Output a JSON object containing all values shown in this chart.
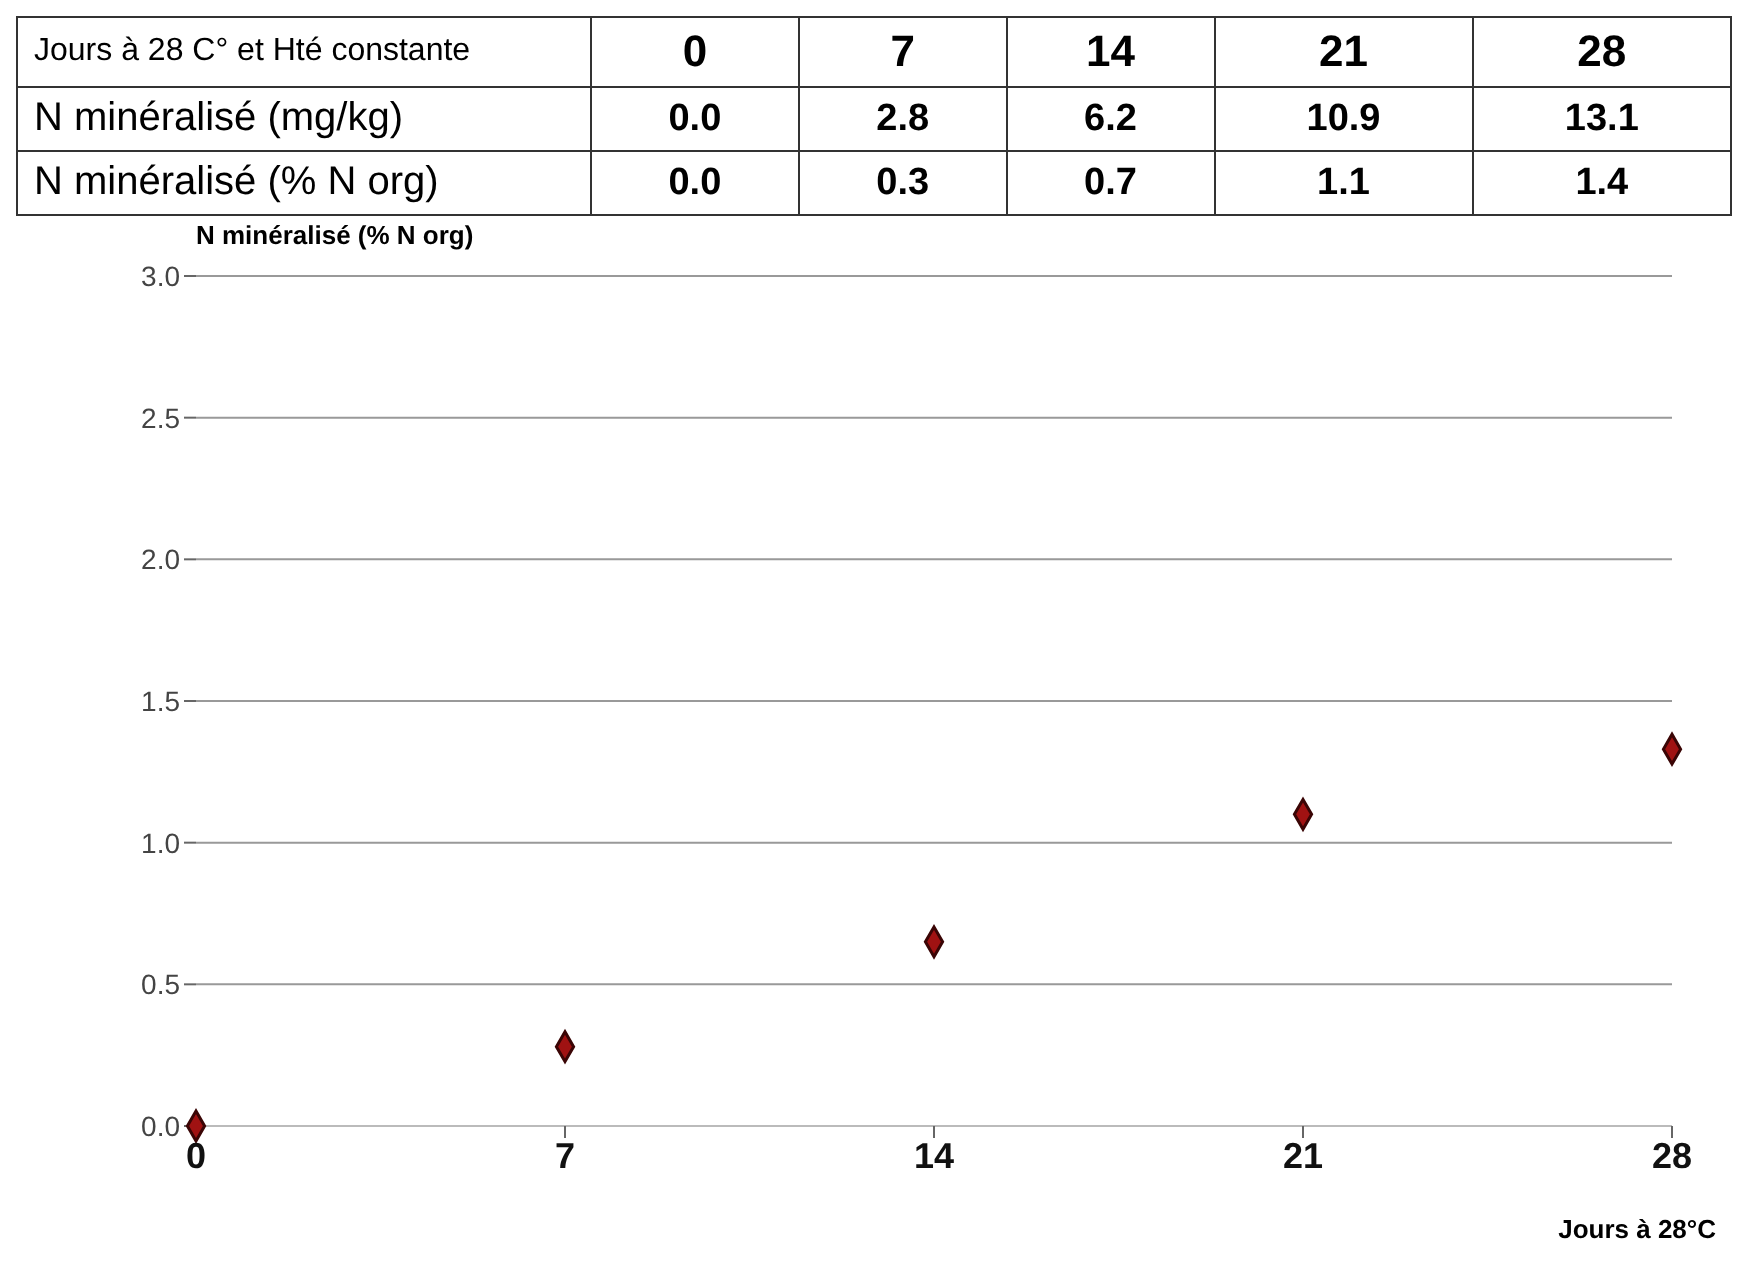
{
  "chart_data": [
    {
      "type": "other",
      "title": "Jours à 28 C° et Hté constante",
      "categories": [
        "0",
        "7",
        "14",
        "21",
        "28"
      ],
      "series": [
        {
          "name": "N minéralisé (mg/kg)",
          "values": [
            0.0,
            2.8,
            6.2,
            10.9,
            13.1
          ],
          "value_labels": [
            "0.0",
            "2.8",
            "6.2",
            "10.9",
            "13.1"
          ]
        },
        {
          "name": "N minéralisé (% N org)",
          "values": [
            0.0,
            0.3,
            0.7,
            1.1,
            1.4
          ],
          "value_labels": [
            "0.0",
            "0.3",
            "0.7",
            "1.1",
            "1.4"
          ]
        }
      ]
    },
    {
      "type": "scatter",
      "ylabel": "N minéralisé (% N org)",
      "xlabel": "Jours à 28°C",
      "x": [
        0,
        7,
        14,
        21,
        28
      ],
      "series": [
        {
          "color": "#a01212",
          "values": [
            0.0,
            0.28,
            0.65,
            1.1,
            1.33
          ]
        }
      ],
      "xlim": [
        0,
        28
      ],
      "xticks": [
        0,
        7,
        14,
        21,
        28
      ],
      "ylim": [
        0,
        3
      ],
      "yticks": [
        {
          "value": 0,
          "label": "0.0"
        },
        {
          "value": 0.5,
          "label": "0.5"
        },
        {
          "value": 1,
          "label": "1.0"
        },
        {
          "value": 1.5,
          "label": "1.5"
        },
        {
          "value": 2,
          "label": "2.0"
        },
        {
          "value": 2.5,
          "label": "2.5"
        },
        {
          "value": 3,
          "label": "3.0"
        }
      ],
      "grid": "y",
      "marker": "diamond"
    }
  ]
}
